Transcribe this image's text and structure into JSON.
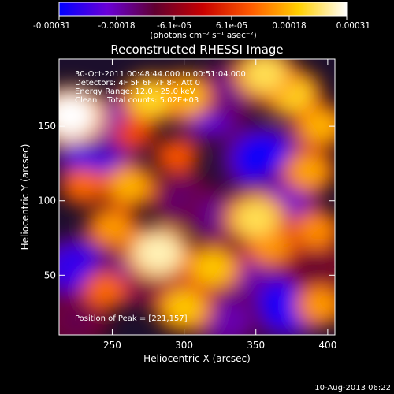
{
  "chart_data": {
    "type": "heatmap",
    "title": "Reconstructed RHESSI Image",
    "xlabel": "Heliocentric X (arcsec)",
    "ylabel": "Heliocentric Y (arcsec)",
    "xlim": [
      213,
      405
    ],
    "ylim": [
      10,
      195
    ],
    "x_ticks": [
      250,
      300,
      350,
      400
    ],
    "y_ticks": [
      50,
      100,
      150
    ],
    "colorbar": {
      "ticks": [
        "-0.00031",
        "-0.00018",
        "-6.1e-05",
        "6.1e-05",
        "0.00018",
        "0.00031"
      ],
      "unit_label": "(photons cm⁻² s⁻¹ asec⁻²)",
      "range": [
        -0.00031,
        0.00031
      ],
      "colors": [
        "#0000ff",
        "#6a00d8",
        "#600030",
        "#c80000",
        "#ff5a00",
        "#ffd000",
        "#ffffff"
      ]
    },
    "annotations": [
      "30-Oct-2011 00:48:44.000 to 00:51:04.000",
      "Detectors: 4F 5F 6F 7F 8F, Att 0",
      "Energy Range: 12.0 - 25.0 keV",
      "Clean    Total counts: 5.02E+03"
    ],
    "peak_label": "Position of Peak = [221,157]",
    "peak": [
      221,
      157
    ],
    "sources": [
      {
        "x": 221,
        "y": 157,
        "v": 0.00031
      },
      {
        "x": 277,
        "y": 168,
        "v": 0.00022
      },
      {
        "x": 300,
        "y": 170,
        "v": 0.0002
      },
      {
        "x": 356,
        "y": 185,
        "v": 0.00024
      },
      {
        "x": 375,
        "y": 172,
        "v": 0.00022
      },
      {
        "x": 395,
        "y": 150,
        "v": 0.00018
      },
      {
        "x": 387,
        "y": 120,
        "v": 0.00017
      },
      {
        "x": 230,
        "y": 110,
        "v": 0.00012
      },
      {
        "x": 262,
        "y": 110,
        "v": 0.00018
      },
      {
        "x": 295,
        "y": 130,
        "v": 0.0001
      },
      {
        "x": 350,
        "y": 88,
        "v": 0.00024
      },
      {
        "x": 392,
        "y": 80,
        "v": 0.00015
      },
      {
        "x": 250,
        "y": 82,
        "v": 0.00016
      },
      {
        "x": 282,
        "y": 65,
        "v": 0.00028
      },
      {
        "x": 320,
        "y": 55,
        "v": 0.0002
      },
      {
        "x": 360,
        "y": 70,
        "v": 0.00016
      },
      {
        "x": 245,
        "y": 40,
        "v": 0.00012
      },
      {
        "x": 300,
        "y": 28,
        "v": 0.0002
      },
      {
        "x": 395,
        "y": 30,
        "v": 0.00016
      },
      {
        "x": 265,
        "y": 145,
        "v": 8e-05
      },
      {
        "x": 238,
        "y": 132,
        "v": -0.00028
      },
      {
        "x": 248,
        "y": 152,
        "v": -0.0002
      },
      {
        "x": 318,
        "y": 160,
        "v": -0.00022
      },
      {
        "x": 333,
        "y": 175,
        "v": -0.00016
      },
      {
        "x": 355,
        "y": 128,
        "v": -0.0003
      },
      {
        "x": 370,
        "y": 100,
        "v": -0.0002
      },
      {
        "x": 225,
        "y": 55,
        "v": -0.00026
      },
      {
        "x": 262,
        "y": 48,
        "v": -0.00018
      },
      {
        "x": 300,
        "y": 100,
        "v": -0.00014
      },
      {
        "x": 325,
        "y": 90,
        "v": -0.00016
      },
      {
        "x": 285,
        "y": 45,
        "v": -0.00012
      },
      {
        "x": 345,
        "y": 50,
        "v": -0.00018
      },
      {
        "x": 372,
        "y": 30,
        "v": -0.0003
      },
      {
        "x": 330,
        "y": 20,
        "v": -0.00018
      },
      {
        "x": 225,
        "y": 20,
        "v": -0.00012
      },
      {
        "x": 392,
        "y": 55,
        "v": -0.0001
      }
    ]
  },
  "footer": {
    "timestamp": "10-Aug-2013 06:22"
  }
}
